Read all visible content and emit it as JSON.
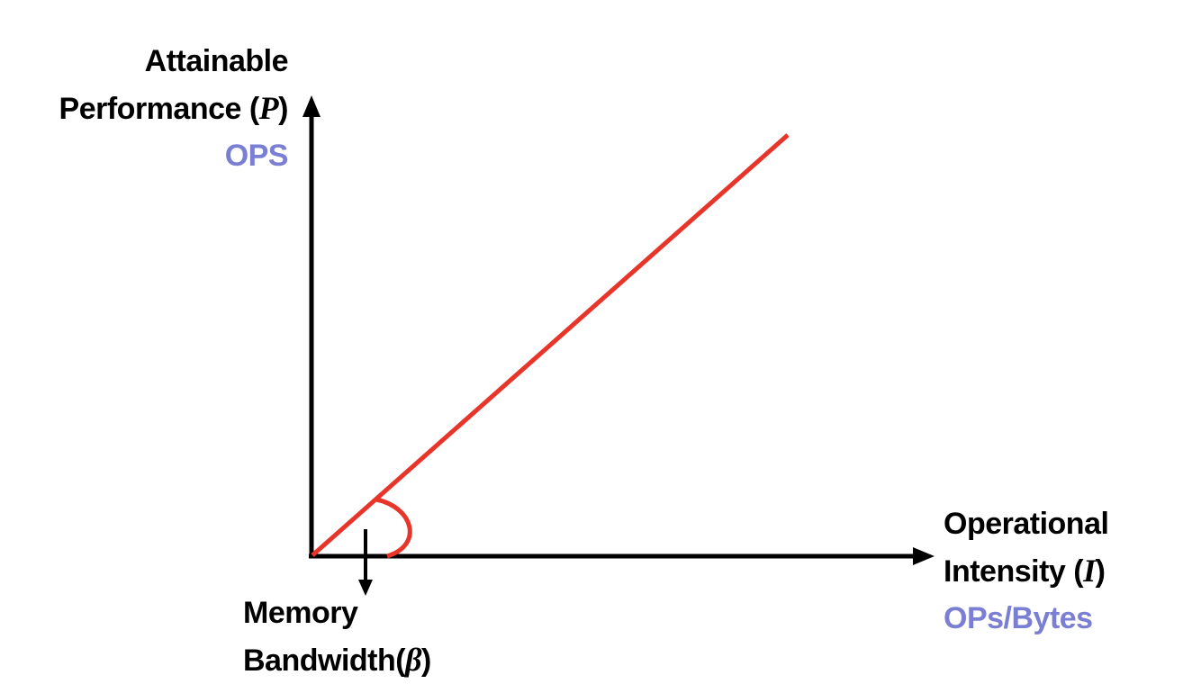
{
  "y_axis": {
    "line1": "Attainable",
    "line2": "Performance (",
    "symbol": "P",
    "close": ")",
    "unit": "OPS"
  },
  "x_axis": {
    "line1": "Operational",
    "line2": "Intensity (",
    "symbol": "I",
    "close": ")",
    "unit": "OPs/Bytes"
  },
  "slope_annotation": {
    "line1": "Memory",
    "line2": "Bandwidth(",
    "symbol": "β",
    "close": ")"
  },
  "colors": {
    "axis": "#000000",
    "roofline": "#e8352a",
    "unit_text": "#7b7fd4"
  }
}
